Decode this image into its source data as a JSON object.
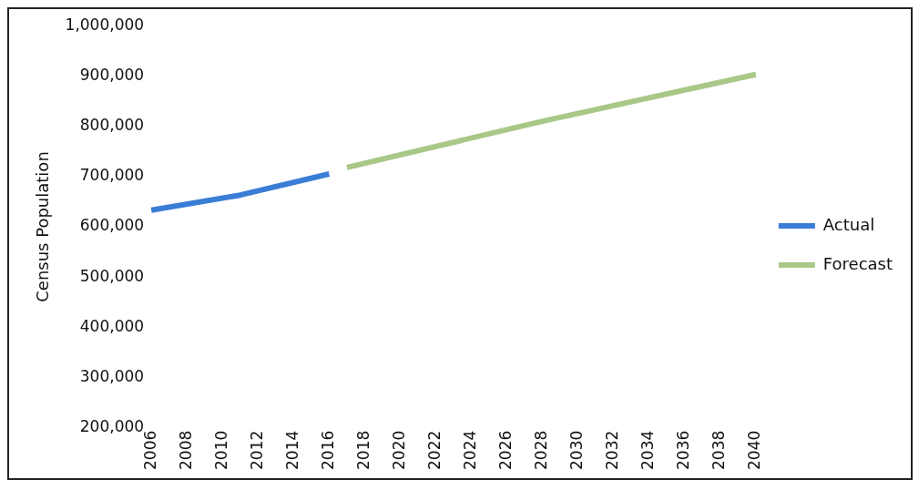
{
  "chart_data": {
    "type": "line",
    "ylabel": "Census Population",
    "series": [
      {
        "name": "Actual",
        "color": "#3a7dd6",
        "x": [
          2006,
          2011,
          2016
        ],
        "values": [
          633000,
          663000,
          705000
        ]
      },
      {
        "name": "Forecast",
        "color": "#a9c888",
        "x": [
          2017,
          2028,
          2040
        ],
        "values": [
          718000,
          810000,
          903000
        ]
      }
    ],
    "xlim": [
      2006,
      2040
    ],
    "xticks": [
      2006,
      2008,
      2010,
      2012,
      2014,
      2016,
      2018,
      2020,
      2022,
      2024,
      2026,
      2028,
      2030,
      2032,
      2034,
      2036,
      2038,
      2040
    ],
    "ylim": [
      200000,
      1000000
    ],
    "yticks": [
      {
        "value": 200000,
        "label": "200,000"
      },
      {
        "value": 300000,
        "label": "300,000"
      },
      {
        "value": 400000,
        "label": "400,000"
      },
      {
        "value": 500000,
        "label": "500,000"
      },
      {
        "value": 600000,
        "label": "600,000"
      },
      {
        "value": 700000,
        "label": "700,000"
      },
      {
        "value": 800000,
        "label": "800,000"
      },
      {
        "value": 900000,
        "label": "900,000"
      },
      {
        "value": 1000000,
        "label": "1,000,000"
      }
    ],
    "grid": false,
    "legend": "right",
    "marker": "none",
    "line_style": "solid"
  }
}
